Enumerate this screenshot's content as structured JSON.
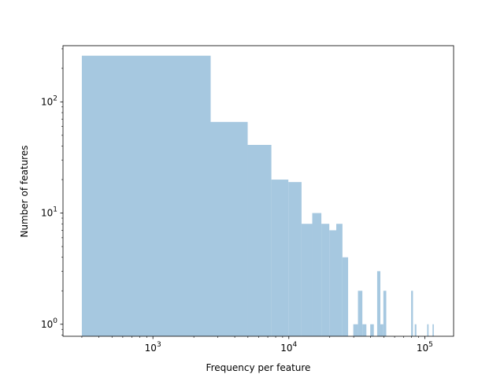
{
  "chart_data": {
    "type": "bar",
    "subtype": "histogram",
    "title": "",
    "xlabel": "Frequency per feature",
    "ylabel": "Number of features",
    "xscale": "log",
    "yscale": "log",
    "xlim": [
      218,
      163000
    ],
    "ylim": [
      0.78,
      320
    ],
    "grid": false,
    "legend": "none",
    "color": "#a6c8e0",
    "x_ticks": [
      {
        "value": 1000,
        "base": "10",
        "exp": "3"
      },
      {
        "value": 10000,
        "base": "10",
        "exp": "4"
      },
      {
        "value": 100000,
        "base": "10",
        "exp": "5"
      }
    ],
    "y_ticks": [
      {
        "value": 1,
        "base": "10",
        "exp": "0"
      },
      {
        "value": 10,
        "base": "10",
        "exp": "1"
      },
      {
        "value": 100,
        "base": "10",
        "exp": "2"
      }
    ],
    "bins": [
      {
        "x0": 300,
        "x1": 2660,
        "count": 260
      },
      {
        "x0": 2660,
        "x1": 4980,
        "count": 66
      },
      {
        "x0": 4980,
        "x1": 7440,
        "count": 41
      },
      {
        "x0": 7440,
        "x1": 9920,
        "count": 20
      },
      {
        "x0": 9920,
        "x1": 12400,
        "count": 19
      },
      {
        "x0": 12400,
        "x1": 14870,
        "count": 8
      },
      {
        "x0": 14870,
        "x1": 17350,
        "count": 10
      },
      {
        "x0": 17350,
        "x1": 19850,
        "count": 8
      },
      {
        "x0": 19850,
        "x1": 22330,
        "count": 7
      },
      {
        "x0": 22330,
        "x1": 24800,
        "count": 8
      },
      {
        "x0": 24800,
        "x1": 27300,
        "count": 4
      },
      {
        "x0": 29800,
        "x1": 32250,
        "count": 1
      },
      {
        "x0": 32250,
        "x1": 34750,
        "count": 2
      },
      {
        "x0": 34750,
        "x1": 37200,
        "count": 1
      },
      {
        "x0": 39700,
        "x1": 42200,
        "count": 1
      },
      {
        "x0": 44650,
        "x1": 47150,
        "count": 3
      },
      {
        "x0": 47150,
        "x1": 49600,
        "count": 1
      },
      {
        "x0": 49600,
        "x1": 52100,
        "count": 2
      },
      {
        "x0": 79400,
        "x1": 81900,
        "count": 2
      },
      {
        "x0": 84400,
        "x1": 86800,
        "count": 1
      },
      {
        "x0": 104200,
        "x1": 106700,
        "count": 1
      },
      {
        "x0": 114100,
        "x1": 116600,
        "count": 1
      }
    ]
  }
}
